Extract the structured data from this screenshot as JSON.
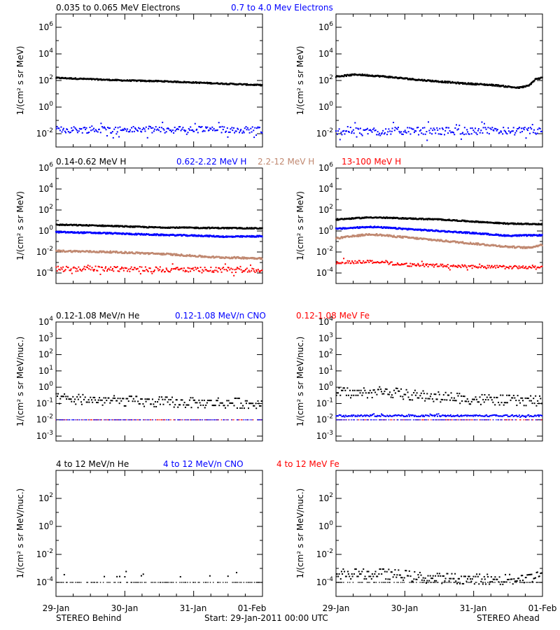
{
  "figure": {
    "start_label": "Start: 29-Jan-2011 00:00 UTC",
    "left_label": "STEREO Behind",
    "right_label": "STEREO Ahead",
    "x_ticks": [
      "29-Jan",
      "30-Jan",
      "31-Jan",
      "01-Feb"
    ]
  },
  "chart_data": [
    {
      "type": "scatter",
      "row": 1,
      "ylabel": "1/(cm² s sr MeV)",
      "yscale": "log",
      "ylim_exp": [
        -3,
        7
      ],
      "ytick_exps": [
        -2,
        0,
        2,
        4,
        6
      ],
      "xlim_days": [
        0,
        3
      ],
      "legend": [
        {
          "name": "0.035 to 0.065 MeV Electrons",
          "color": "#000000"
        },
        {
          "name": "0.7 to 4.0 Mev Electrons",
          "color": "#0000ff"
        }
      ],
      "panels": [
        {
          "spacecraft": "STEREO Behind",
          "series": [
            {
              "color": "#000000",
              "style": "dense",
              "spread": 0.04,
              "x": [
                0,
                0.5,
                1,
                1.5,
                2,
                2.5,
                3
              ],
              "log_y": [
                2.2,
                2.1,
                2.0,
                1.95,
                1.85,
                1.75,
                1.65
              ]
            },
            {
              "color": "#0000ff",
              "style": "scatter",
              "spread": 0.25,
              "x": [
                0,
                1,
                2,
                3
              ],
              "log_y": [
                -1.7,
                -1.7,
                -1.7,
                -1.7
              ]
            }
          ]
        },
        {
          "spacecraft": "STEREO Ahead",
          "series": [
            {
              "color": "#000000",
              "style": "dense",
              "spread": 0.05,
              "x": [
                0,
                0.3,
                0.7,
                1.2,
                1.8,
                2.3,
                2.65,
                2.8,
                2.9,
                3
              ],
              "log_y": [
                2.3,
                2.45,
                2.3,
                2.05,
                1.8,
                1.65,
                1.45,
                1.6,
                2.1,
                2.2
              ]
            },
            {
              "color": "#0000ff",
              "style": "scatter",
              "spread": 0.28,
              "x": [
                0,
                1,
                2,
                3
              ],
              "log_y": [
                -1.8,
                -1.8,
                -1.8,
                -1.8
              ]
            }
          ]
        }
      ]
    },
    {
      "type": "scatter",
      "row": 2,
      "ylabel": "1/(cm² s sr MeV)",
      "yscale": "log",
      "ylim_exp": [
        -5,
        6
      ],
      "ytick_exps": [
        -4,
        -2,
        0,
        2,
        4,
        6
      ],
      "xlim_days": [
        0,
        3
      ],
      "legend": [
        {
          "name": "0.14-0.62 MeV H",
          "color": "#000000"
        },
        {
          "name": "0.62-2.22 MeV H",
          "color": "#0000ff"
        },
        {
          "name": "2.2-12 MeV H",
          "color": "#c08870"
        },
        {
          "name": "13-100 MeV H",
          "color": "#ff0000"
        }
      ],
      "panels": [
        {
          "spacecraft": "STEREO Behind",
          "series": [
            {
              "color": "#000000",
              "style": "dense",
              "spread": 0.05,
              "x": [
                0,
                0.7,
                1.4,
                2.1,
                3
              ],
              "log_y": [
                0.6,
                0.5,
                0.35,
                0.3,
                0.25
              ]
            },
            {
              "color": "#0000ff",
              "style": "dense",
              "spread": 0.06,
              "x": [
                0,
                0.7,
                1.4,
                2.1,
                2.5,
                3
              ],
              "log_y": [
                -0.1,
                -0.2,
                -0.35,
                -0.45,
                -0.55,
                -0.5
              ]
            },
            {
              "color": "#c08870",
              "style": "dense",
              "spread": 0.08,
              "x": [
                0,
                0.8,
                1.6,
                2.3,
                3
              ],
              "log_y": [
                -1.9,
                -2.0,
                -2.2,
                -2.5,
                -2.6
              ]
            },
            {
              "color": "#ff0000",
              "style": "scatter",
              "spread": 0.25,
              "x": [
                0,
                1,
                2,
                3
              ],
              "log_y": [
                -3.6,
                -3.6,
                -3.7,
                -3.7
              ]
            }
          ]
        },
        {
          "spacecraft": "STEREO Ahead",
          "series": [
            {
              "color": "#000000",
              "style": "dense",
              "spread": 0.05,
              "x": [
                0,
                0.5,
                1.0,
                1.5,
                2.0,
                2.5,
                3
              ],
              "log_y": [
                1.1,
                1.3,
                1.2,
                1.1,
                0.9,
                0.7,
                0.65
              ]
            },
            {
              "color": "#0000ff",
              "style": "dense",
              "spread": 0.06,
              "x": [
                0,
                0.5,
                1.0,
                1.5,
                2.0,
                2.5,
                3
              ],
              "log_y": [
                0.2,
                0.4,
                0.2,
                0.0,
                -0.2,
                -0.45,
                -0.4
              ]
            },
            {
              "color": "#c08870",
              "style": "dense",
              "spread": 0.08,
              "x": [
                0,
                0.5,
                1.0,
                1.5,
                2.0,
                2.5,
                2.8,
                3
              ],
              "log_y": [
                -0.7,
                -0.3,
                -0.6,
                -0.9,
                -1.2,
                -1.5,
                -1.6,
                -1.3
              ]
            },
            {
              "color": "#ff0000",
              "style": "scatter",
              "spread": 0.15,
              "x": [
                0,
                0.5,
                1,
                2,
                3
              ],
              "log_y": [
                -3.0,
                -2.9,
                -3.2,
                -3.4,
                -3.5
              ]
            }
          ]
        }
      ]
    },
    {
      "type": "scatter",
      "row": 3,
      "ylabel": "1/(cm² s sr MeV/nuc.)",
      "yscale": "log",
      "ylim_exp": [
        -3.3,
        4
      ],
      "ytick_exps": [
        -3,
        -2,
        -1,
        0,
        1,
        2,
        3,
        4
      ],
      "xlim_days": [
        0,
        3
      ],
      "legend": [
        {
          "name": "0.12-1.08 MeV/n He",
          "color": "#000000"
        },
        {
          "name": "0.12-1.08 MeV/n CNO",
          "color": "#0000ff"
        },
        {
          "name": "0.12-1.08 MeV Fe",
          "color": "#ff0000"
        }
      ],
      "panels": [
        {
          "spacecraft": "STEREO Behind",
          "series": [
            {
              "color": "#000000",
              "style": "quantized",
              "spread": 0.3,
              "x": [
                0,
                1,
                2,
                3
              ],
              "log_y": [
                -0.7,
                -0.85,
                -0.95,
                -1.0
              ]
            },
            {
              "color": "#ff0000",
              "style": "baseline",
              "spread": 0,
              "x": [
                0,
                3
              ],
              "log_y": [
                -2,
                -2
              ]
            },
            {
              "color": "#0000ff",
              "style": "baseline",
              "spread": 0,
              "x": [
                0,
                3
              ],
              "log_y": [
                -2,
                -2
              ]
            }
          ]
        },
        {
          "spacecraft": "STEREO Ahead",
          "series": [
            {
              "color": "#000000",
              "style": "quantized",
              "spread": 0.3,
              "x": [
                0,
                0.5,
                0.7,
                1.0,
                2.0,
                3
              ],
              "log_y": [
                -0.35,
                -0.35,
                -0.25,
                -0.45,
                -0.75,
                -0.85
              ]
            },
            {
              "color": "#0000ff",
              "style": "scatter",
              "spread": 0.05,
              "x": [
                0,
                3
              ],
              "log_y": [
                -1.75,
                -1.75
              ]
            },
            {
              "color": "#ff0000",
              "style": "baseline",
              "spread": 0,
              "x": [
                0,
                3
              ],
              "log_y": [
                -2,
                -2
              ]
            },
            {
              "color": "#0000ff",
              "style": "baseline",
              "spread": 0,
              "x": [
                0,
                3
              ],
              "log_y": [
                -2,
                -2
              ]
            }
          ]
        }
      ]
    },
    {
      "type": "scatter",
      "row": 4,
      "ylabel": "1/(cm² s sr MeV/nuc.)",
      "yscale": "log",
      "ylim_exp": [
        -5,
        4
      ],
      "ytick_exps": [
        -4,
        -2,
        0,
        2
      ],
      "xlim_days": [
        0,
        3
      ],
      "legend": [
        {
          "name": "4 to 12 MeV/n He",
          "color": "#000000"
        },
        {
          "name": "4 to 12 MeV/n CNO",
          "color": "#0000ff"
        },
        {
          "name": "4 to 12 MeV Fe",
          "color": "#ff0000"
        }
      ],
      "panels": [
        {
          "spacecraft": "STEREO Behind",
          "series": [
            {
              "color": "#000000",
              "style": "baseline",
              "spread": 0,
              "x": [
                0,
                3
              ],
              "log_y": [
                -4,
                -4
              ]
            },
            {
              "color": "#000000",
              "style": "sparse",
              "spread": 0.4,
              "x": [
                0,
                3
              ],
              "log_y": [
                -3.6,
                -3.6
              ]
            }
          ]
        },
        {
          "spacecraft": "STEREO Ahead",
          "series": [
            {
              "color": "#000000",
              "style": "baseline",
              "spread": 0,
              "x": [
                0,
                3
              ],
              "log_y": [
                -4,
                -4
              ]
            },
            {
              "color": "#000000",
              "style": "quantized",
              "spread": 0.35,
              "x": [
                0,
                0.7,
                1.0,
                1.3,
                2.5,
                2.85,
                3
              ],
              "log_y": [
                -3.4,
                -3.4,
                -3.5,
                -3.7,
                -3.8,
                -3.6,
                -3.3
              ]
            },
            {
              "color": "#0000ff",
              "style": "sparse",
              "spread": 0.05,
              "x": [
                0,
                3
              ],
              "log_y": [
                -5.2,
                -5.2
              ]
            }
          ]
        }
      ]
    }
  ]
}
